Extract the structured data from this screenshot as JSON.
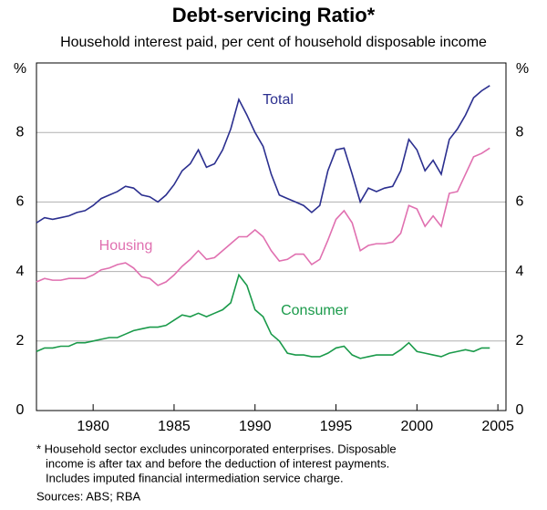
{
  "chart_data": {
    "type": "line",
    "title": "Debt-servicing Ratio*",
    "subtitle": "Household interest paid, per cent of household disposable income",
    "y_unit": "%",
    "x": [
      1976.5,
      1977,
      1977.5,
      1978,
      1978.5,
      1979,
      1979.5,
      1980,
      1980.5,
      1981,
      1981.5,
      1982,
      1982.5,
      1983,
      1983.5,
      1984,
      1984.5,
      1985,
      1985.5,
      1986,
      1986.5,
      1987,
      1987.5,
      1988,
      1988.5,
      1989,
      1989.5,
      1990,
      1990.5,
      1991,
      1991.5,
      1992,
      1992.5,
      1993,
      1993.5,
      1994,
      1994.5,
      1995,
      1995.5,
      1996,
      1996.5,
      1997,
      1997.5,
      1998,
      1998.5,
      1999,
      1999.5,
      2000,
      2000.5,
      2001,
      2001.5,
      2002,
      2002.5,
      2003,
      2003.5,
      2004,
      2004.5
    ],
    "series": [
      {
        "name": "Total",
        "color": "#2b2f8f",
        "values": [
          5.4,
          5.55,
          5.5,
          5.55,
          5.6,
          5.7,
          5.75,
          5.9,
          6.1,
          6.2,
          6.3,
          6.45,
          6.4,
          6.2,
          6.15,
          6.0,
          6.2,
          6.5,
          6.9,
          7.1,
          7.5,
          7.0,
          7.1,
          7.5,
          8.1,
          8.95,
          8.5,
          8.0,
          7.6,
          6.8,
          6.2,
          6.1,
          6.0,
          5.9,
          5.7,
          5.9,
          6.9,
          7.5,
          7.55,
          6.8,
          6.0,
          6.4,
          6.3,
          6.4,
          6.45,
          6.9,
          7.8,
          7.5,
          6.9,
          7.2,
          6.8,
          7.8,
          8.1,
          8.5,
          9.0,
          9.2,
          9.35
        ]
      },
      {
        "name": "Housing",
        "color": "#e070b0",
        "values": [
          3.7,
          3.8,
          3.75,
          3.75,
          3.8,
          3.8,
          3.8,
          3.9,
          4.05,
          4.1,
          4.2,
          4.25,
          4.1,
          3.85,
          3.8,
          3.6,
          3.7,
          3.9,
          4.15,
          4.35,
          4.6,
          4.35,
          4.4,
          4.6,
          4.8,
          5.0,
          5.0,
          5.2,
          5.0,
          4.6,
          4.3,
          4.35,
          4.5,
          4.5,
          4.2,
          4.35,
          4.9,
          5.5,
          5.75,
          5.4,
          4.6,
          4.75,
          4.8,
          4.8,
          4.85,
          5.1,
          5.9,
          5.8,
          5.3,
          5.6,
          5.3,
          6.25,
          6.3,
          6.8,
          7.3,
          7.4,
          7.55
        ]
      },
      {
        "name": "Consumer",
        "color": "#1a9a4a",
        "values": [
          1.7,
          1.8,
          1.8,
          1.85,
          1.85,
          1.95,
          1.95,
          2.0,
          2.05,
          2.1,
          2.1,
          2.2,
          2.3,
          2.35,
          2.4,
          2.4,
          2.45,
          2.6,
          2.75,
          2.7,
          2.8,
          2.7,
          2.8,
          2.9,
          3.1,
          3.9,
          3.6,
          2.9,
          2.7,
          2.2,
          2.0,
          1.65,
          1.6,
          1.6,
          1.55,
          1.55,
          1.65,
          1.8,
          1.85,
          1.6,
          1.5,
          1.55,
          1.6,
          1.6,
          1.6,
          1.75,
          1.95,
          1.7,
          1.65,
          1.6,
          1.55,
          1.65,
          1.7,
          1.75,
          1.7,
          1.8,
          1.8
        ]
      }
    ],
    "xlim": [
      1976.5,
      2005.5
    ],
    "xticks": [
      1980,
      1985,
      1990,
      1995,
      2000,
      2005
    ],
    "ylim": [
      0,
      10
    ],
    "yticks": [
      0,
      2,
      4,
      6,
      8
    ],
    "grid": true,
    "notes": [
      "* Household sector excludes unincorporated enterprises. Disposable",
      "income is after tax and before the deduction of interest payments.",
      "Includes imputed financial intermediation service charge."
    ],
    "sources": "Sources: ABS; RBA"
  }
}
